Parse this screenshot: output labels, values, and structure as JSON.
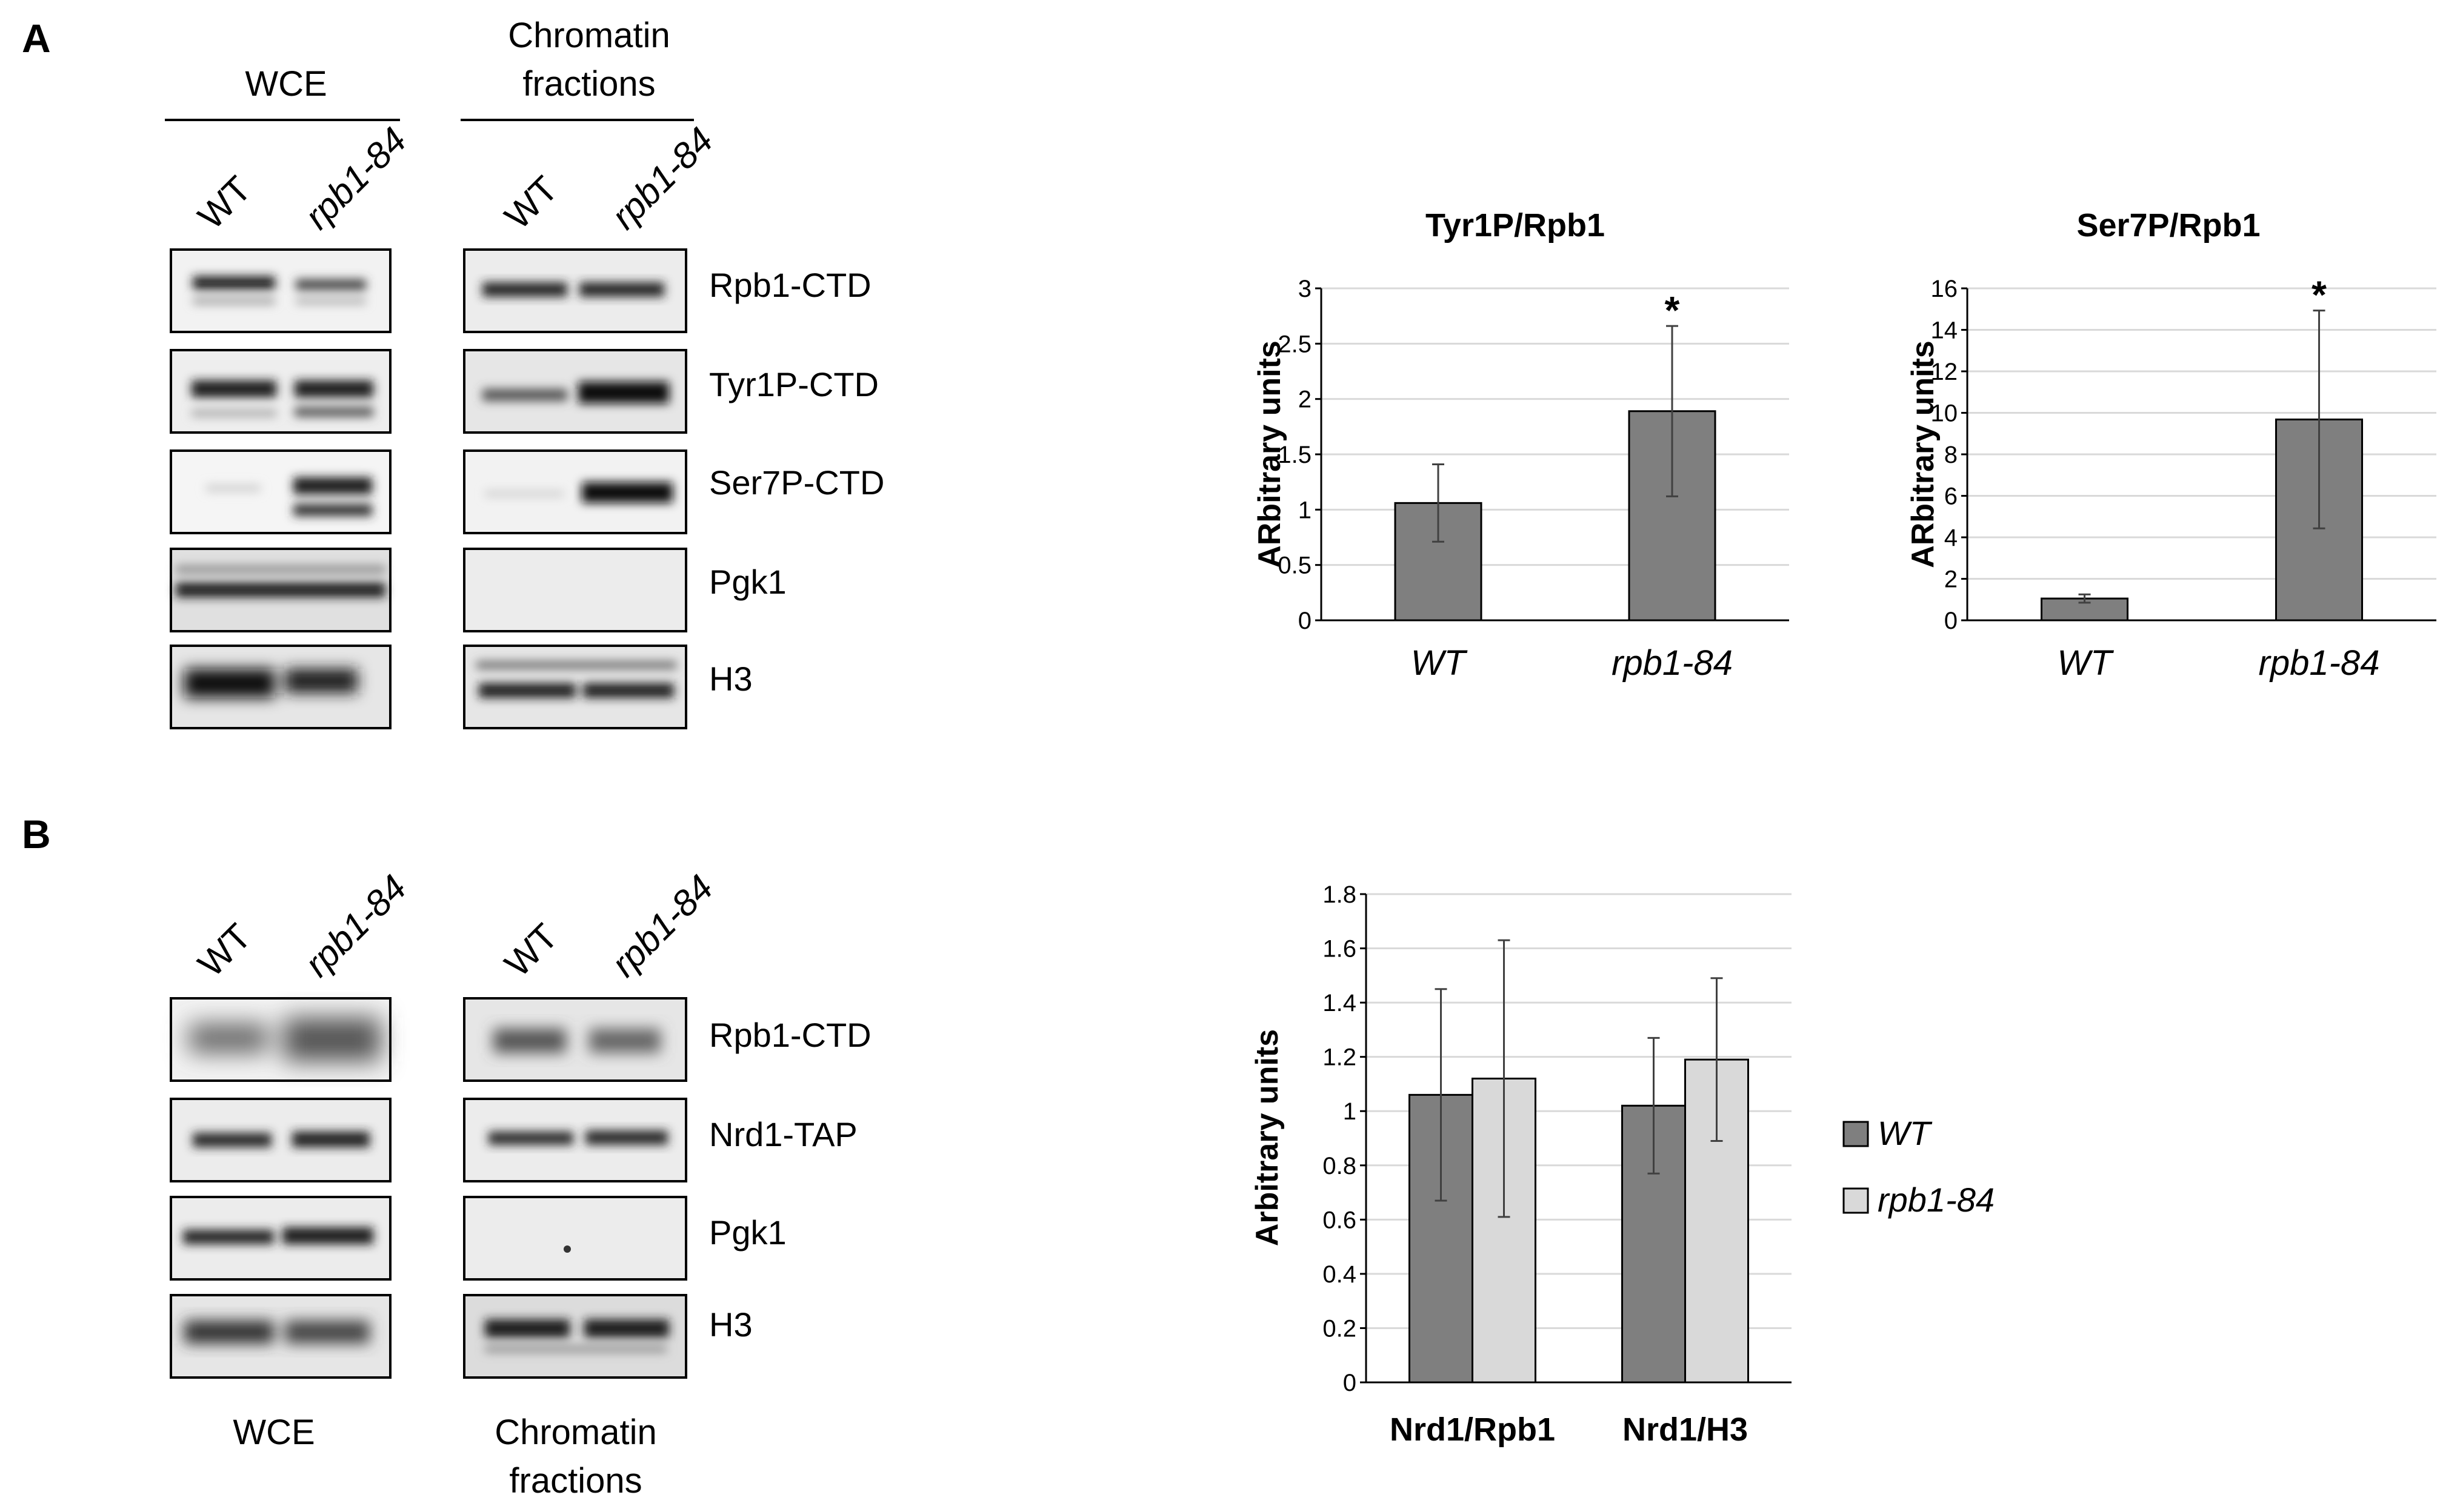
{
  "panel_A": {
    "label": "A",
    "wce_header": "WCE",
    "chromatin_header_line1": "Chromatin",
    "chromatin_header_line2": "fractions",
    "lanes": [
      "WT",
      "rpb1-84"
    ],
    "bands": [
      "Rpb1-CTD",
      "Tyr1P-CTD",
      "Ser7P-CTD",
      "Pgk1",
      "H3"
    ]
  },
  "panel_B": {
    "label": "B",
    "lanes": [
      "WT",
      "rpb1-84"
    ],
    "bands": [
      "Rpb1-CTD",
      "Nrd1-TAP",
      "Pgk1",
      "H3"
    ],
    "wce_footer": "WCE",
    "chromatin_footer_line1": "Chromatin",
    "chromatin_footer_line2": "fractions"
  },
  "colors": {
    "wt_bar": "#7f7f7f",
    "mutant_bar": "#d9d9d9",
    "gridline": "#d9d9d9"
  },
  "chart_data": [
    {
      "type": "bar",
      "title": "Tyr1P/Rpb1",
      "ylabel": "ARbitrary units",
      "categories": [
        "WT",
        "rpb1-84"
      ],
      "values": [
        1.06,
        1.89
      ],
      "errors": [
        0.35,
        0.77
      ],
      "significance": [
        "",
        "*"
      ],
      "yticks": [
        "0",
        "0.5",
        "1",
        "1.5",
        "2",
        "2.5",
        "3"
      ],
      "ylim": [
        0,
        3
      ],
      "grid": true
    },
    {
      "type": "bar",
      "title": "Ser7P/Rpb1",
      "ylabel": "ARbitrary units",
      "categories": [
        "WT",
        "rpb1-84"
      ],
      "values": [
        1.05,
        9.68
      ],
      "errors": [
        0.2,
        5.25
      ],
      "significance": [
        "",
        "*"
      ],
      "yticks": [
        "0",
        "2",
        "4",
        "6",
        "8",
        "10",
        "12",
        "14",
        "16"
      ],
      "ylim": [
        0,
        16
      ],
      "grid": true
    },
    {
      "type": "bar",
      "title": "",
      "ylabel": "Arbitrary units",
      "categories": [
        "Nrd1/Rpb1",
        "Nrd1/H3"
      ],
      "series": [
        {
          "name": "WT",
          "values": [
            1.06,
            1.02
          ],
          "errors": [
            0.39,
            0.25
          ]
        },
        {
          "name": "rpb1-84",
          "values": [
            1.12,
            1.19
          ],
          "errors": [
            0.51,
            0.3
          ]
        }
      ],
      "yticks": [
        "0",
        "0.2",
        "0.4",
        "0.6",
        "0.8",
        "1",
        "1.2",
        "1.4",
        "1.6",
        "1.8"
      ],
      "ylim": [
        0,
        1.8
      ],
      "grid": true,
      "legend": "right"
    }
  ]
}
